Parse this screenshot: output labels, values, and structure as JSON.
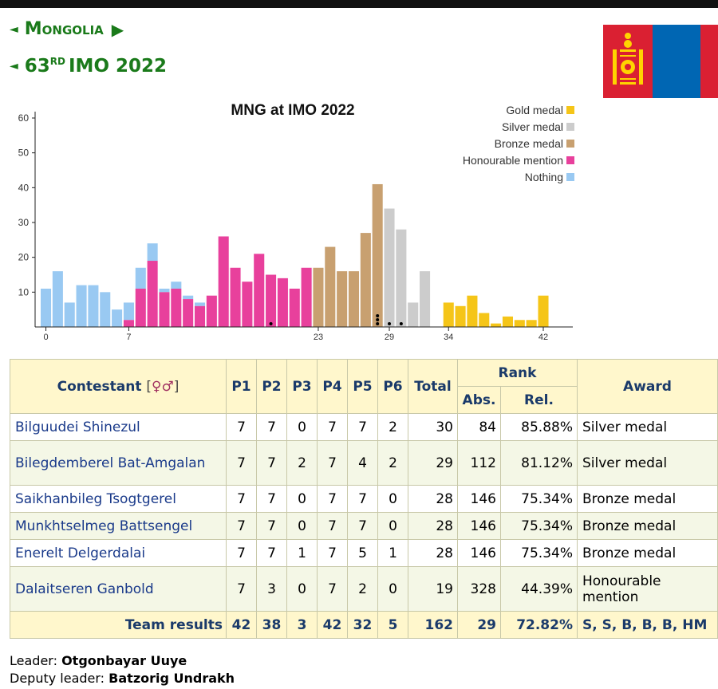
{
  "nav": {
    "country_label": "Mongolia",
    "olympiad_label": "63",
    "olympiad_suffix": "RD",
    "olympiad_rest": "IMO 2022",
    "prev_arrow": "◄",
    "next_arrow": "▶"
  },
  "flag": {
    "colors": {
      "red": "#da2032",
      "blue": "#0066b3",
      "emblem": "#ffd400"
    }
  },
  "chart_data": {
    "type": "bar",
    "title": "MNG at IMO 2022",
    "xlabel": "",
    "ylabel": "",
    "ylim": [
      0,
      60
    ],
    "yticks": [
      10,
      20,
      30,
      40,
      50,
      60
    ],
    "xtick_labels": [
      "0",
      "7",
      "23",
      "29",
      "34",
      "42"
    ],
    "x_range": [
      0,
      42
    ],
    "legend_position": "top-right",
    "legend": [
      {
        "name": "Gold medal",
        "color": "#f5c518"
      },
      {
        "name": "Silver medal",
        "color": "#cccccc"
      },
      {
        "name": "Bronze medal",
        "color": "#c8a070"
      },
      {
        "name": "Honourable mention",
        "color": "#e8409c"
      },
      {
        "name": "Nothing",
        "color": "#99c9f2"
      }
    ],
    "bars": [
      {
        "x": 0,
        "y": 11,
        "award": "Nothing"
      },
      {
        "x": 1,
        "y": 16,
        "award": "Nothing"
      },
      {
        "x": 2,
        "y": 7,
        "award": "Nothing"
      },
      {
        "x": 3,
        "y": 12,
        "award": "Nothing"
      },
      {
        "x": 4,
        "y": 12,
        "award": "Nothing"
      },
      {
        "x": 5,
        "y": 10,
        "award": "Nothing"
      },
      {
        "x": 6,
        "y": 5,
        "award": "Nothing"
      },
      {
        "x": 7,
        "y": 7,
        "award": "Nothing",
        "hm": 2
      },
      {
        "x": 8,
        "y": 17,
        "award": "Nothing",
        "hm": 11
      },
      {
        "x": 9,
        "y": 24,
        "award": "Nothing",
        "hm": 19
      },
      {
        "x": 10,
        "y": 11,
        "award": "Nothing",
        "hm": 10
      },
      {
        "x": 11,
        "y": 13,
        "award": "Nothing",
        "hm": 11
      },
      {
        "x": 12,
        "y": 9,
        "award": "Nothing",
        "hm": 8
      },
      {
        "x": 13,
        "y": 7,
        "award": "Nothing",
        "hm": 6
      },
      {
        "x": 14,
        "y": 9,
        "award": "Honourable mention"
      },
      {
        "x": 15,
        "y": 26,
        "award": "Honourable mention"
      },
      {
        "x": 16,
        "y": 17,
        "award": "Honourable mention"
      },
      {
        "x": 17,
        "y": 13,
        "award": "Honourable mention"
      },
      {
        "x": 18,
        "y": 21,
        "award": "Honourable mention"
      },
      {
        "x": 19,
        "y": 15,
        "award": "Honourable mention"
      },
      {
        "x": 20,
        "y": 14,
        "award": "Honourable mention"
      },
      {
        "x": 21,
        "y": 11,
        "award": "Honourable mention"
      },
      {
        "x": 22,
        "y": 17,
        "award": "Honourable mention"
      },
      {
        "x": 23,
        "y": 17,
        "award": "Bronze medal"
      },
      {
        "x": 24,
        "y": 23,
        "award": "Bronze medal"
      },
      {
        "x": 25,
        "y": 16,
        "award": "Bronze medal"
      },
      {
        "x": 26,
        "y": 16,
        "award": "Bronze medal"
      },
      {
        "x": 27,
        "y": 27,
        "award": "Bronze medal"
      },
      {
        "x": 28,
        "y": 41,
        "award": "Bronze medal"
      },
      {
        "x": 29,
        "y": 34,
        "award": "Silver medal"
      },
      {
        "x": 30,
        "y": 28,
        "award": "Silver medal"
      },
      {
        "x": 31,
        "y": 7,
        "award": "Silver medal"
      },
      {
        "x": 32,
        "y": 16,
        "award": "Silver medal"
      },
      {
        "x": 33,
        "y": 0,
        "award": "Silver medal"
      },
      {
        "x": 34,
        "y": 7,
        "award": "Gold medal"
      },
      {
        "x": 35,
        "y": 6,
        "award": "Gold medal"
      },
      {
        "x": 36,
        "y": 9,
        "award": "Gold medal"
      },
      {
        "x": 37,
        "y": 4,
        "award": "Gold medal"
      },
      {
        "x": 38,
        "y": 1,
        "award": "Gold medal"
      },
      {
        "x": 39,
        "y": 3,
        "award": "Gold medal"
      },
      {
        "x": 40,
        "y": 2,
        "award": "Gold medal"
      },
      {
        "x": 41,
        "y": 2,
        "award": "Gold medal"
      },
      {
        "x": 42,
        "y": 9,
        "award": "Gold medal"
      }
    ],
    "team_markers": [
      {
        "x": 19,
        "count": 1
      },
      {
        "x": 28,
        "count": 3
      },
      {
        "x": 29,
        "count": 1
      },
      {
        "x": 30,
        "count": 1
      }
    ]
  },
  "table": {
    "headers": {
      "contestant": "Contestant",
      "gender": "[♀♂]",
      "p1": "P1",
      "p2": "P2",
      "p3": "P3",
      "p4": "P4",
      "p5": "P5",
      "p6": "P6",
      "total": "Total",
      "rank": "Rank",
      "abs": "Abs.",
      "rel": "Rel.",
      "award": "Award"
    },
    "rows": [
      {
        "name": "Bilguudei Shinezul",
        "p1": "7",
        "p2": "7",
        "p3": "0",
        "p4": "7",
        "p5": "7",
        "p6": "2",
        "total": "30",
        "abs": "84",
        "rel": "85.88%",
        "award": "Silver medal"
      },
      {
        "name": "Bilegdemberel Bat-Amgalan",
        "p1": "7",
        "p2": "7",
        "p3": "2",
        "p4": "7",
        "p5": "4",
        "p6": "2",
        "total": "29",
        "abs": "112",
        "rel": "81.12%",
        "award": "Silver medal"
      },
      {
        "name": "Saikhanbileg Tsogtgerel",
        "p1": "7",
        "p2": "7",
        "p3": "0",
        "p4": "7",
        "p5": "7",
        "p6": "0",
        "total": "28",
        "abs": "146",
        "rel": "75.34%",
        "award": "Bronze medal"
      },
      {
        "name": "Munkhtselmeg Battsengel",
        "p1": "7",
        "p2": "7",
        "p3": "0",
        "p4": "7",
        "p5": "7",
        "p6": "0",
        "total": "28",
        "abs": "146",
        "rel": "75.34%",
        "award": "Bronze medal"
      },
      {
        "name": "Enerelt Delgerdalai",
        "p1": "7",
        "p2": "7",
        "p3": "1",
        "p4": "7",
        "p5": "5",
        "p6": "1",
        "total": "28",
        "abs": "146",
        "rel": "75.34%",
        "award": "Bronze medal"
      },
      {
        "name": "Dalaitseren Ganbold",
        "p1": "7",
        "p2": "3",
        "p3": "0",
        "p4": "7",
        "p5": "2",
        "p6": "0",
        "total": "19",
        "abs": "328",
        "rel": "44.39%",
        "award": "Honourable mention"
      }
    ],
    "team": {
      "label": "Team results",
      "p1": "42",
      "p2": "38",
      "p3": "3",
      "p4": "42",
      "p5": "32",
      "p6": "5",
      "total": "162",
      "abs": "29",
      "rel": "72.82%",
      "award": "S, S, B, B, B, HM"
    }
  },
  "leaders": {
    "leader_label": "Leader:",
    "leader_name": "Otgonbayar Uuye",
    "deputy_label": "Deputy leader:",
    "deputy_name": "Batzorig Undrakh"
  }
}
